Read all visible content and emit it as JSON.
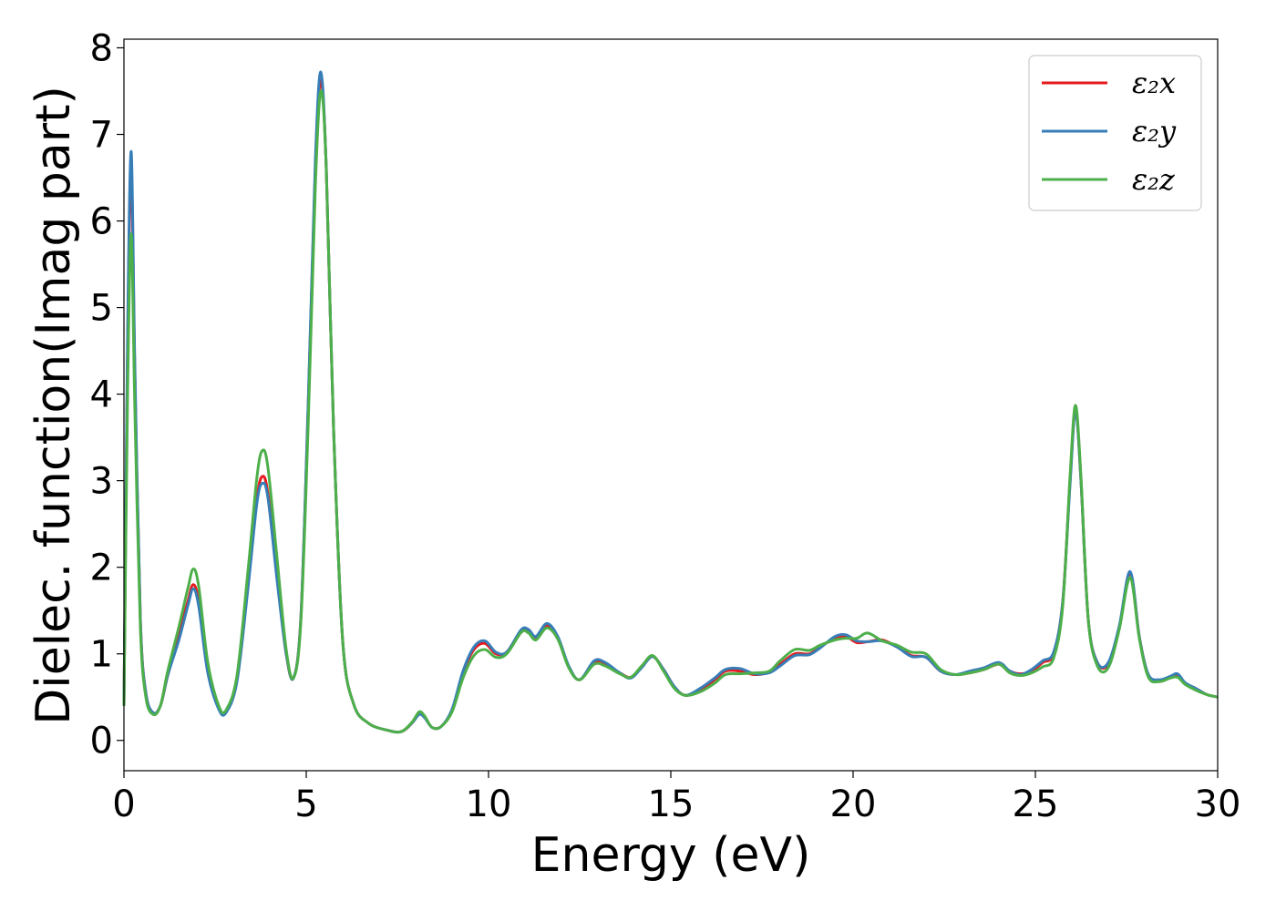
{
  "chart_data": {
    "type": "line",
    "xlabel": "Energy (eV)",
    "ylabel": "Dielec. function(Imag part)",
    "xlim": [
      0,
      30
    ],
    "ylim": [
      -0.35,
      8.1
    ],
    "xticks": [
      0,
      5,
      10,
      15,
      20,
      25,
      30
    ],
    "yticks": [
      0,
      1,
      2,
      3,
      4,
      5,
      6,
      7,
      8
    ],
    "grid": false,
    "legend_placement": "top-right",
    "x": [
      0,
      0.1,
      0.2,
      0.3,
      0.45,
      0.6,
      0.8,
      1.0,
      1.2,
      1.5,
      1.75,
      1.9,
      2.05,
      2.3,
      2.6,
      2.8,
      3.1,
      3.4,
      3.65,
      3.8,
      3.95,
      4.2,
      4.45,
      4.65,
      4.85,
      5.05,
      5.25,
      5.4,
      5.55,
      5.75,
      6.0,
      6.3,
      6.7,
      7.2,
      7.6,
      7.9,
      8.1,
      8.25,
      8.45,
      8.7,
      9.0,
      9.3,
      9.6,
      9.9,
      10.2,
      10.5,
      10.9,
      11.1,
      11.3,
      11.6,
      11.9,
      12.2,
      12.5,
      12.9,
      13.2,
      13.6,
      13.9,
      14.2,
      14.5,
      14.8,
      15.1,
      15.4,
      15.8,
      16.2,
      16.5,
      16.9,
      17.3,
      17.7,
      18.0,
      18.4,
      18.8,
      19.1,
      19.5,
      19.8,
      20.1,
      20.4,
      20.8,
      21.2,
      21.6,
      22.0,
      22.4,
      22.8,
      23.2,
      23.6,
      24.0,
      24.3,
      24.6,
      24.9,
      25.2,
      25.5,
      25.75,
      25.95,
      26.1,
      26.25,
      26.45,
      26.7,
      27.0,
      27.3,
      27.6,
      27.85,
      28.1,
      28.4,
      28.7,
      28.9,
      29.1,
      29.4,
      29.7,
      30.0
    ],
    "series": [
      {
        "name": "ε₂x",
        "color": "#e41a1c",
        "values": [
          0.4,
          4.5,
          6.6,
          4.2,
          1.4,
          0.55,
          0.32,
          0.4,
          0.75,
          1.2,
          1.6,
          1.8,
          1.6,
          0.8,
          0.38,
          0.33,
          0.7,
          1.8,
          2.8,
          3.05,
          2.85,
          1.9,
          1.0,
          0.72,
          1.4,
          3.8,
          6.6,
          7.62,
          6.6,
          3.6,
          1.15,
          0.42,
          0.2,
          0.12,
          0.1,
          0.2,
          0.32,
          0.27,
          0.15,
          0.16,
          0.35,
          0.78,
          1.05,
          1.12,
          1.0,
          1.02,
          1.27,
          1.26,
          1.18,
          1.33,
          1.18,
          0.85,
          0.7,
          0.9,
          0.88,
          0.78,
          0.73,
          0.85,
          0.97,
          0.82,
          0.62,
          0.52,
          0.58,
          0.7,
          0.8,
          0.8,
          0.76,
          0.79,
          0.88,
          1.0,
          1.0,
          1.08,
          1.18,
          1.2,
          1.13,
          1.14,
          1.16,
          1.08,
          0.98,
          0.96,
          0.8,
          0.76,
          0.78,
          0.82,
          0.88,
          0.8,
          0.77,
          0.8,
          0.9,
          1.0,
          1.6,
          3.0,
          3.82,
          3.0,
          1.4,
          0.9,
          0.88,
          1.3,
          1.93,
          1.2,
          0.75,
          0.68,
          0.73,
          0.75,
          0.66,
          0.6,
          0.53,
          0.5
        ]
      },
      {
        "name": "ε₂y",
        "color": "#377eb8",
        "values": [
          0.4,
          4.7,
          6.8,
          4.3,
          1.4,
          0.55,
          0.32,
          0.4,
          0.75,
          1.15,
          1.55,
          1.75,
          1.55,
          0.78,
          0.36,
          0.32,
          0.68,
          1.75,
          2.75,
          2.97,
          2.8,
          1.85,
          1.0,
          0.72,
          1.4,
          3.85,
          6.7,
          7.72,
          6.6,
          3.6,
          1.15,
          0.42,
          0.2,
          0.12,
          0.1,
          0.2,
          0.3,
          0.26,
          0.15,
          0.16,
          0.36,
          0.8,
          1.08,
          1.15,
          1.02,
          1.02,
          1.28,
          1.28,
          1.2,
          1.35,
          1.2,
          0.86,
          0.7,
          0.92,
          0.9,
          0.78,
          0.72,
          0.84,
          0.97,
          0.82,
          0.62,
          0.52,
          0.6,
          0.72,
          0.82,
          0.83,
          0.77,
          0.78,
          0.86,
          0.98,
          0.99,
          1.07,
          1.2,
          1.22,
          1.15,
          1.14,
          1.15,
          1.08,
          0.97,
          0.96,
          0.8,
          0.76,
          0.8,
          0.84,
          0.9,
          0.8,
          0.76,
          0.82,
          0.92,
          1.02,
          1.6,
          2.95,
          3.8,
          3.0,
          1.4,
          0.9,
          0.9,
          1.32,
          1.95,
          1.2,
          0.76,
          0.7,
          0.74,
          0.77,
          0.67,
          0.6,
          0.53,
          0.5
        ]
      },
      {
        "name": "ε₂z",
        "color": "#4daf4a",
        "values": [
          0.4,
          4.0,
          5.85,
          3.8,
          1.3,
          0.5,
          0.3,
          0.4,
          0.8,
          1.3,
          1.75,
          1.98,
          1.78,
          0.9,
          0.4,
          0.35,
          0.75,
          1.95,
          3.05,
          3.35,
          3.15,
          2.1,
          1.05,
          0.72,
          1.35,
          3.6,
          6.4,
          7.5,
          6.6,
          3.6,
          1.15,
          0.42,
          0.2,
          0.12,
          0.1,
          0.21,
          0.33,
          0.28,
          0.15,
          0.16,
          0.33,
          0.72,
          0.98,
          1.05,
          0.96,
          1.0,
          1.25,
          1.24,
          1.16,
          1.3,
          1.17,
          0.84,
          0.7,
          0.88,
          0.86,
          0.77,
          0.73,
          0.86,
          0.98,
          0.8,
          0.6,
          0.52,
          0.56,
          0.66,
          0.76,
          0.77,
          0.78,
          0.8,
          0.92,
          1.05,
          1.04,
          1.1,
          1.16,
          1.18,
          1.18,
          1.24,
          1.15,
          1.1,
          1.02,
          1.0,
          0.82,
          0.76,
          0.78,
          0.82,
          0.88,
          0.78,
          0.75,
          0.78,
          0.85,
          0.95,
          1.55,
          3.05,
          3.87,
          3.05,
          1.4,
          0.86,
          0.84,
          1.28,
          1.88,
          1.18,
          0.73,
          0.68,
          0.72,
          0.73,
          0.65,
          0.58,
          0.53,
          0.5
        ]
      }
    ]
  }
}
